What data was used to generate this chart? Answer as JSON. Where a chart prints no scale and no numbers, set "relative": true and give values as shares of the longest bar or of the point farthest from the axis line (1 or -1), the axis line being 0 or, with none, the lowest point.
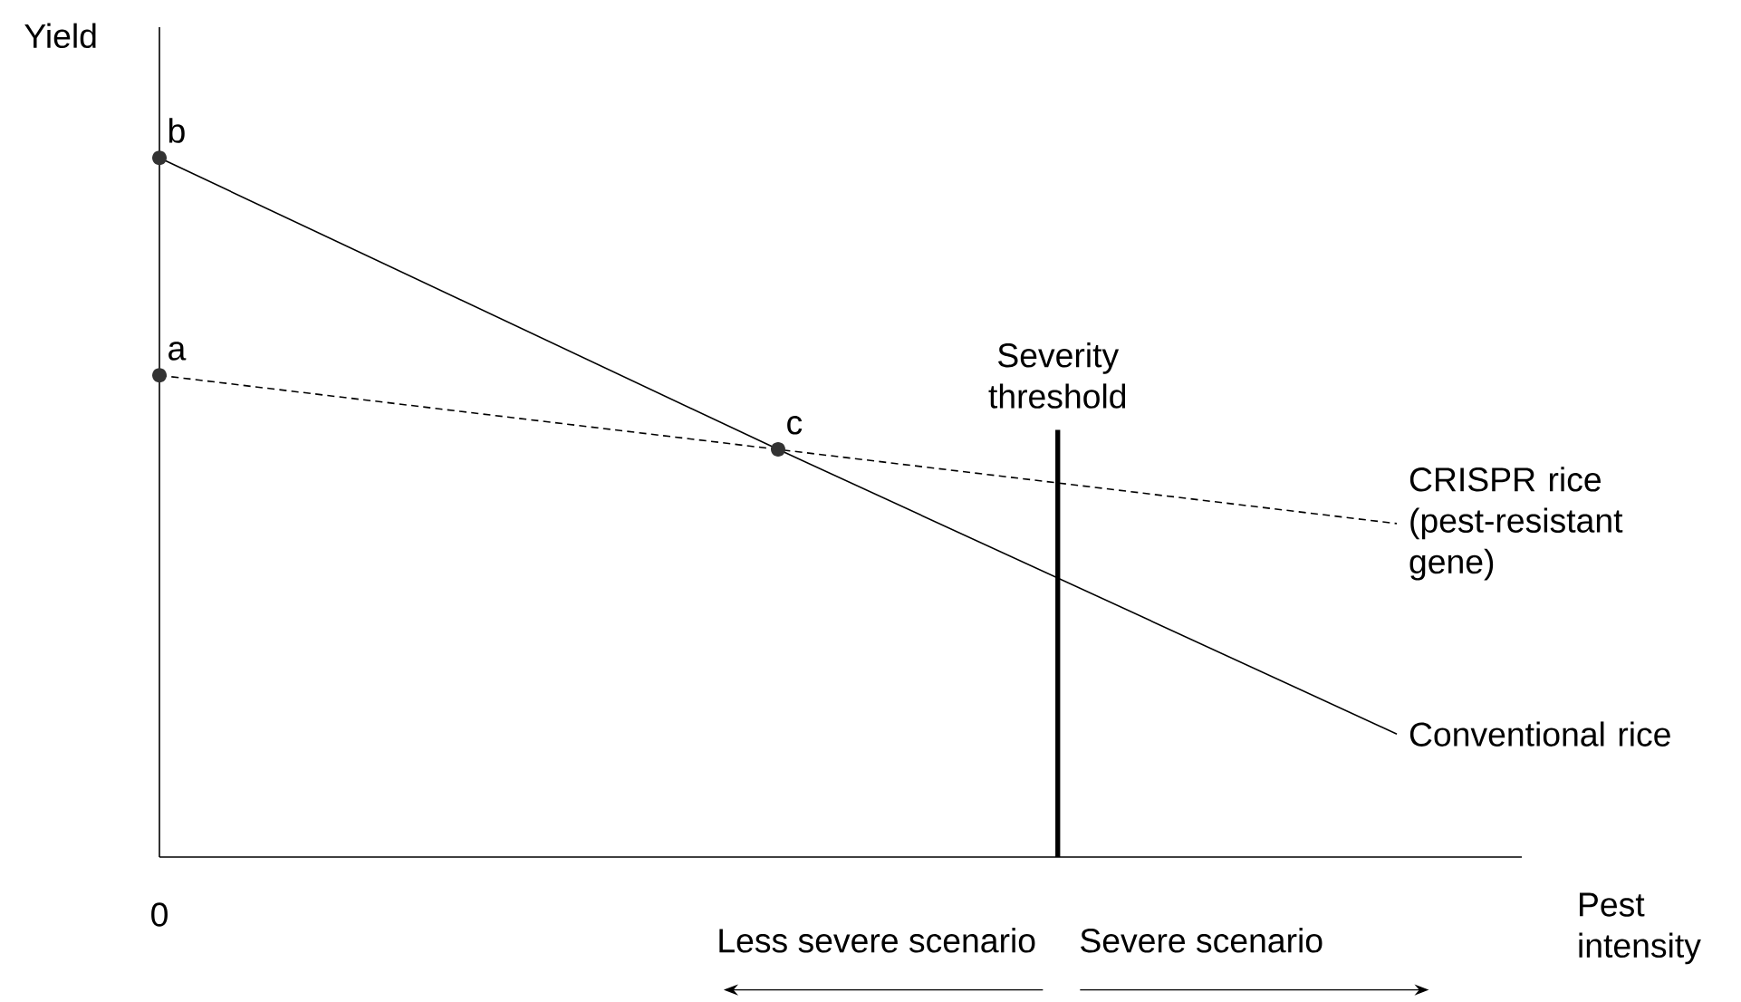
{
  "chart_data": {
    "type": "line",
    "relative": true,
    "xlabel": "Pest intensity",
    "ylabel": "Yield",
    "categories": [
      null,
      null,
      null
    ],
    "series": [
      {
        "name": "CRISPR rice (pest-resistant gene)",
        "color": "#000000",
        "line_style": "dashed",
        "values": [
          0.689,
          0.583,
          0.477
        ]
      },
      {
        "name": "Conventional rice",
        "color": "#000000",
        "line_style": "solid",
        "values": [
          1,
          0.583,
          0.176
        ]
      }
    ],
    "annotations": [
      "a",
      "b",
      "c",
      "0",
      "Less severe scenario",
      "Severe scenario",
      "Severity threshold"
    ],
    "legend": false
  }
}
